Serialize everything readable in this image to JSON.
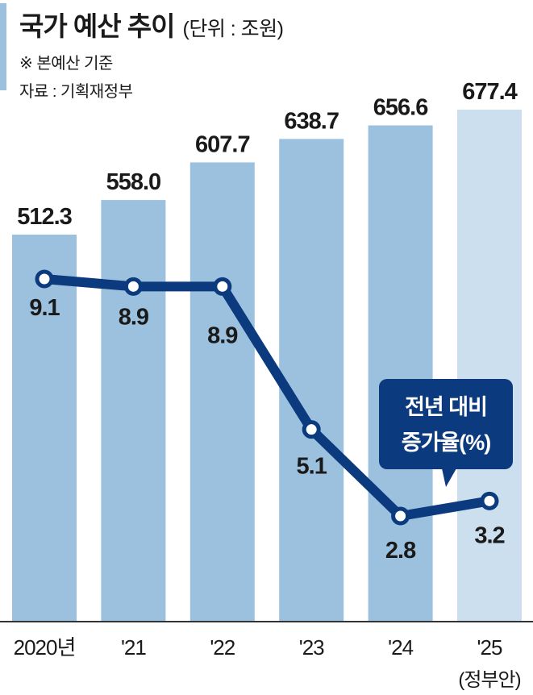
{
  "header": {
    "title": "국가 예산 추이",
    "unit": "(단위 : 조원)",
    "note": "※ 본예산 기준",
    "source": "자료 : 기획재정부"
  },
  "colors": {
    "bar": "#9cc1de",
    "bar_last": "#cbdfef",
    "line": "#0b3a7e",
    "axis": "#333333",
    "accent": "#9cc1de"
  },
  "chart_data": {
    "type": "bar",
    "categories": [
      "2020년",
      "'21",
      "'22",
      "'23",
      "'24",
      "'25"
    ],
    "category_notes": [
      "",
      "",
      "",
      "",
      "",
      "(정부안)"
    ],
    "series": [
      {
        "name": "",
        "type": "bar",
        "values": [
          512.3,
          558.0,
          607.7,
          638.7,
          656.6,
          677.4
        ],
        "labels": [
          "512.3",
          "558.0",
          "607.7",
          "638.7",
          "656.6",
          "677.4"
        ]
      },
      {
        "name": "전년 대비 증가율(%)",
        "type": "line",
        "values": [
          9.1,
          8.9,
          8.9,
          5.1,
          2.8,
          3.2
        ],
        "labels": [
          "9.1",
          "8.9",
          "8.9",
          "5.1",
          "2.8",
          "3.2"
        ]
      }
    ],
    "legend": {
      "line1": "전년 대비",
      "line2": "증가율(%)",
      "position": "right"
    },
    "grid": false
  }
}
